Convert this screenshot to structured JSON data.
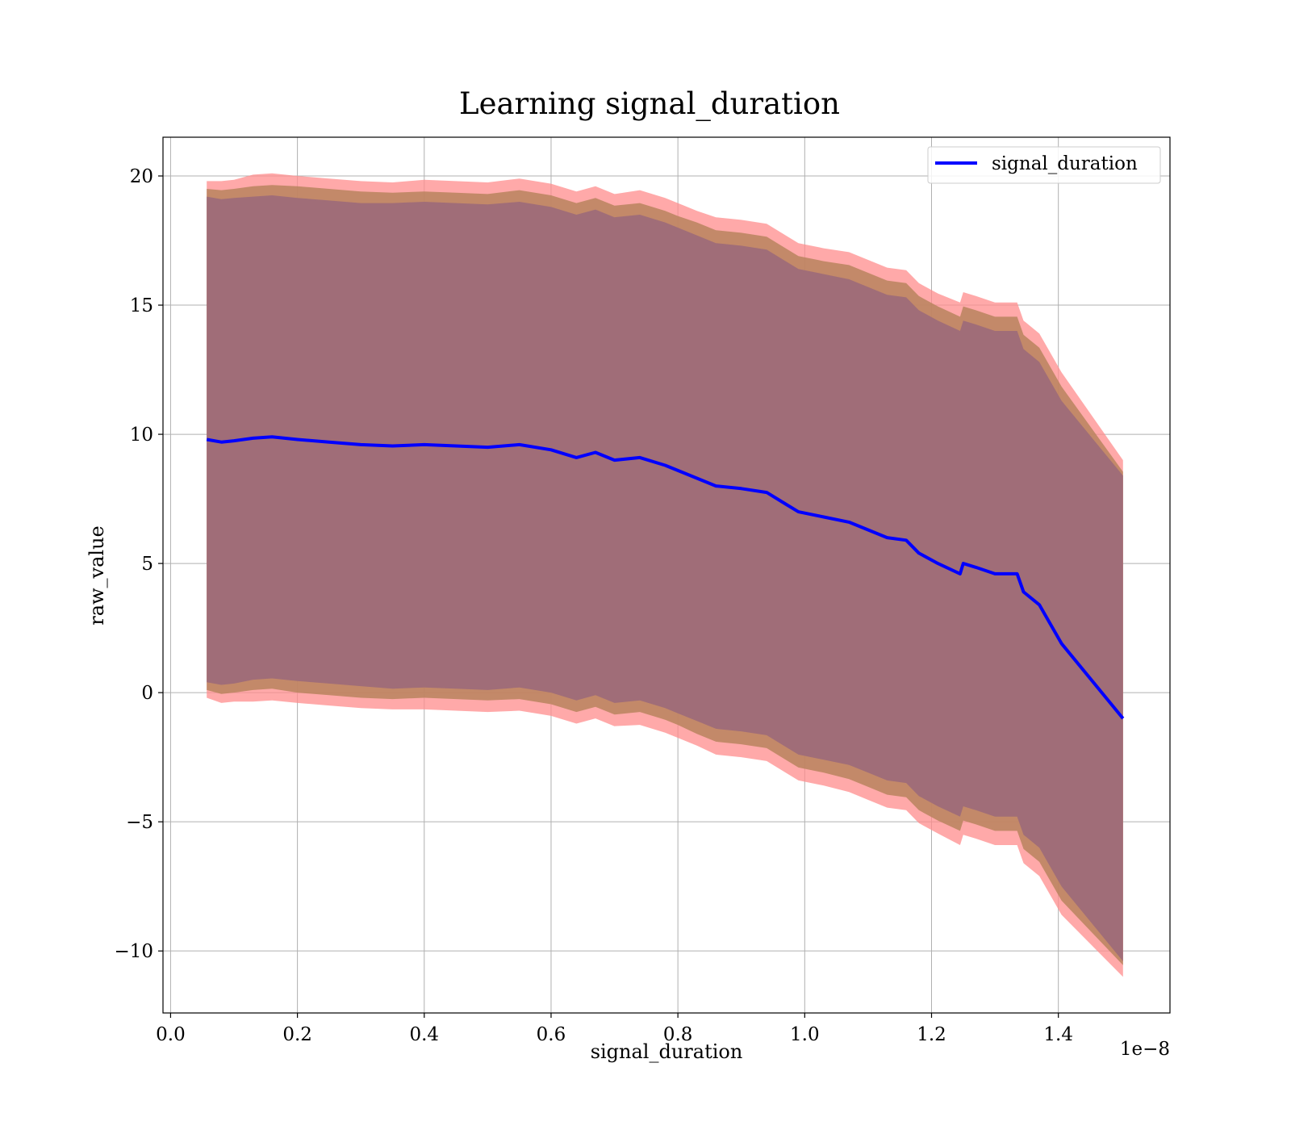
{
  "chart_data": {
    "type": "line",
    "title": "Learning signal_duration",
    "xlabel": "signal_duration",
    "ylabel": "raw_value",
    "x_offset_label": "1e−8",
    "x_scale": 1e-08,
    "xlim": [
      -0.012,
      1.576
    ],
    "ylim": [
      -12.4,
      21.5
    ],
    "x_ticks": [
      0.0,
      0.2,
      0.4,
      0.6,
      0.8,
      1.0,
      1.2,
      1.4
    ],
    "x_tick_labels": [
      "0.0",
      "0.2",
      "0.4",
      "0.6",
      "0.8",
      "1.0",
      "1.2",
      "1.4"
    ],
    "y_ticks": [
      -10,
      -5,
      0,
      5,
      10,
      15,
      20
    ],
    "y_tick_labels": [
      "−10",
      "−5",
      "0",
      "5",
      "10",
      "15",
      "20"
    ],
    "grid": true,
    "legend": {
      "position": "top-right",
      "entries": [
        "signal_duration"
      ]
    },
    "series": [
      {
        "name": "signal_duration",
        "color": "#0000ff",
        "x": [
          0.057,
          0.08,
          0.1,
          0.13,
          0.16,
          0.2,
          0.25,
          0.3,
          0.35,
          0.4,
          0.45,
          0.5,
          0.55,
          0.6,
          0.64,
          0.67,
          0.7,
          0.74,
          0.78,
          0.8,
          0.83,
          0.86,
          0.9,
          0.94,
          0.97,
          0.99,
          1.03,
          1.07,
          1.1,
          1.13,
          1.16,
          1.18,
          1.21,
          1.245,
          1.25,
          1.27,
          1.3,
          1.335,
          1.345,
          1.37,
          1.405,
          1.502
        ],
        "y": [
          9.8,
          9.7,
          9.75,
          9.85,
          9.9,
          9.8,
          9.7,
          9.6,
          9.55,
          9.6,
          9.55,
          9.5,
          9.6,
          9.4,
          9.1,
          9.3,
          9.0,
          9.1,
          8.8,
          8.6,
          8.3,
          8.0,
          7.9,
          7.75,
          7.3,
          7.0,
          6.8,
          6.6,
          6.3,
          6.0,
          5.9,
          5.4,
          5.0,
          4.6,
          5.0,
          4.85,
          4.6,
          4.6,
          3.9,
          3.4,
          1.9,
          -1.0
        ]
      }
    ],
    "bands": [
      {
        "color": "#ff8c8c",
        "opacity": 0.75,
        "half_widths": [
          10.0,
          10.1,
          10.1,
          10.2,
          10.2,
          10.2,
          10.2,
          10.2,
          10.2,
          10.25,
          10.25,
          10.25,
          10.3,
          10.3,
          10.3,
          10.3,
          10.3,
          10.35,
          10.35,
          10.35,
          10.35,
          10.4,
          10.4,
          10.4,
          10.4,
          10.4,
          10.4,
          10.45,
          10.45,
          10.45,
          10.45,
          10.45,
          10.45,
          10.5,
          10.5,
          10.5,
          10.5,
          10.5,
          10.5,
          10.5,
          10.5,
          10.0
        ]
      },
      {
        "color": "#b8845e",
        "opacity": 0.85,
        "half_widths": [
          9.7,
          9.75,
          9.75,
          9.75,
          9.75,
          9.8,
          9.8,
          9.8,
          9.8,
          9.8,
          9.8,
          9.8,
          9.85,
          9.85,
          9.85,
          9.85,
          9.85,
          9.85,
          9.85,
          9.85,
          9.9,
          9.9,
          9.9,
          9.9,
          9.9,
          9.9,
          9.9,
          9.95,
          9.95,
          9.95,
          9.95,
          9.95,
          9.95,
          9.95,
          9.95,
          9.95,
          9.95,
          9.95,
          9.95,
          9.95,
          9.95,
          9.55
        ]
      },
      {
        "color": "#a06d78",
        "opacity": 1.0,
        "half_widths": [
          9.4,
          9.4,
          9.4,
          9.35,
          9.35,
          9.35,
          9.35,
          9.35,
          9.4,
          9.4,
          9.4,
          9.4,
          9.4,
          9.4,
          9.4,
          9.4,
          9.4,
          9.4,
          9.4,
          9.4,
          9.4,
          9.4,
          9.4,
          9.4,
          9.4,
          9.4,
          9.4,
          9.4,
          9.4,
          9.4,
          9.4,
          9.4,
          9.4,
          9.4,
          9.4,
          9.4,
          9.4,
          9.4,
          9.4,
          9.4,
          9.4,
          9.4
        ]
      }
    ]
  }
}
